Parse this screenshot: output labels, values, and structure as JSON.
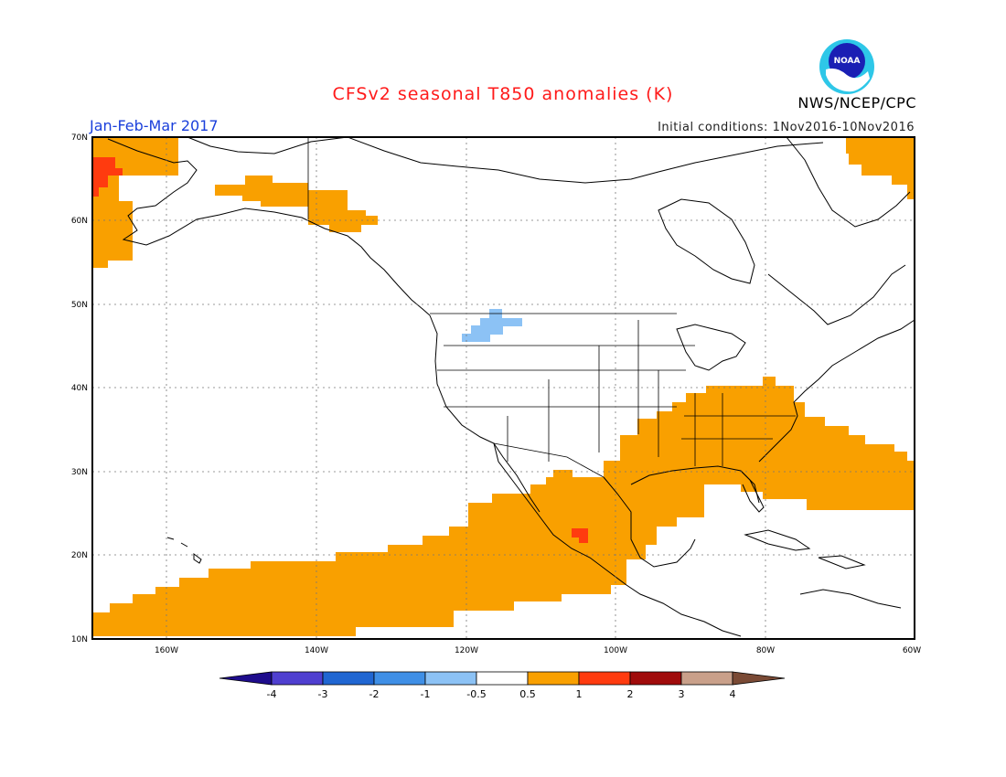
{
  "title": "CFSv2 seasonal T850 anomalies (K)",
  "season_label": "Jan-Feb-Mar 2017",
  "initial_conditions": "Initial conditions: 1Nov2016-10Nov2016",
  "agency": "NWS/NCEP/CPC",
  "logo_text": "NOAA",
  "latitude_labels": [
    "70N",
    "60N",
    "50N",
    "40N",
    "30N",
    "20N",
    "10N"
  ],
  "longitude_labels": [
    "160W",
    "140W",
    "120W",
    "100W",
    "80W",
    "60W"
  ],
  "colorbar": {
    "labels": [
      "-4",
      "-3",
      "-2",
      "-1",
      "-0.5",
      "0.5",
      "1",
      "2",
      "3",
      "4"
    ],
    "colors": [
      "#1e0c8c",
      "#4f3fd0",
      "#2066d2",
      "#3f8fe6",
      "#8cc2f5",
      "#ffffff",
      "#f9a000",
      "#ff3b0f",
      "#a00b0b",
      "#c9a08a",
      "#7a4a35"
    ]
  },
  "colors": {
    "positive_0_5_to_1": "#f9a000",
    "positive_1_to_2": "#ff3b0f",
    "negative_0_5_to_1": "#8cc2f5"
  }
}
